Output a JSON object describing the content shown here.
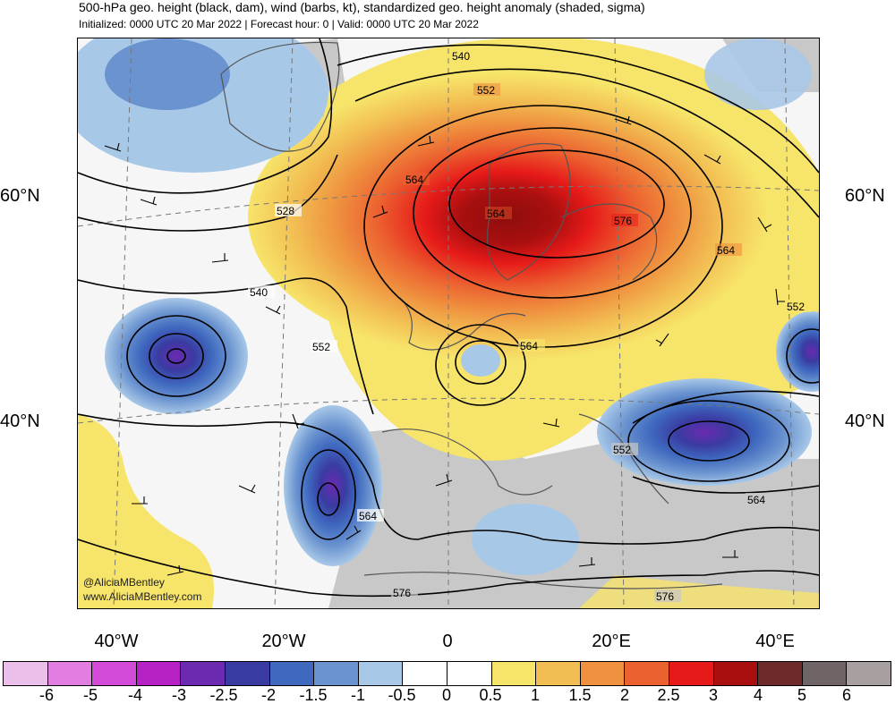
{
  "header": {
    "title": "500-hPa geo. height (black, dam), wind (barbs, kt), standardized geo. height anomaly (shaded, sigma)",
    "subtitle": "Initialized: 0000 UTC 20 Mar 2022 | Forecast hour: 0 | Valid: 0000 UTC 20 Mar 2022"
  },
  "map": {
    "lat_labels": {
      "left_60": "60°N",
      "left_40": "40°N",
      "right_60": "60°N",
      "right_40": "40°N"
    },
    "lon_labels": [
      "40°W",
      "20°W",
      "0",
      "20°E",
      "40°E"
    ],
    "contour_labels": [
      "540",
      "552",
      "564",
      "576",
      "528",
      "540",
      "552",
      "564",
      "564",
      "564",
      "552",
      "552",
      "564",
      "576",
      "576",
      "564"
    ],
    "credits": {
      "handle": "@AliciaMBentley",
      "site": "www.AliciaMBentley.com"
    },
    "colors": {
      "land": "#c8c8c8",
      "ocean": "#f6f6f6",
      "coast": "#555555",
      "contour": "#000000"
    }
  },
  "colorbar": {
    "labels": [
      "-6",
      "-5",
      "-4",
      "-3",
      "-2.5",
      "-2",
      "-1.5",
      "-1",
      "-0.5",
      "0",
      "0.5",
      "1",
      "1.5",
      "2",
      "2.5",
      "3",
      "4",
      "5",
      "6"
    ],
    "colors": [
      "#ebbfe9",
      "#e27de2",
      "#d44ad9",
      "#b622c6",
      "#6b2ab0",
      "#3a3ba2",
      "#3f69bf",
      "#6a93cf",
      "#a8c8e8",
      "#ffffff",
      "#ffffff",
      "#f7e46a",
      "#f2bd52",
      "#ef913f",
      "#ec6130",
      "#e61a19",
      "#a90f0f",
      "#6e2a2a",
      "#6f6566",
      "#a89fa0"
    ]
  }
}
